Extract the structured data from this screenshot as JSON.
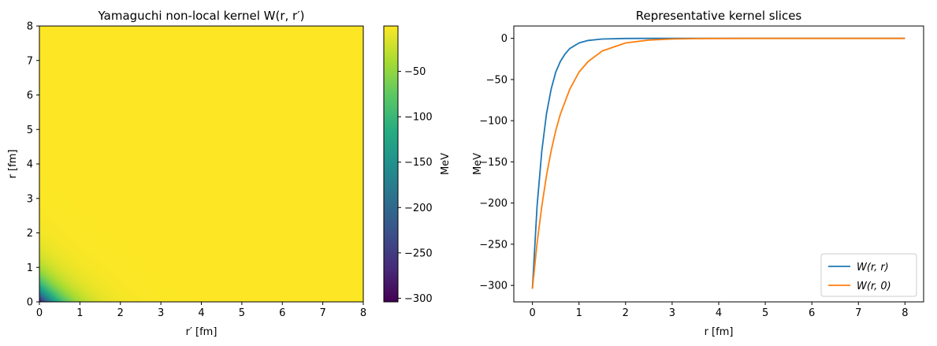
{
  "chart_data": [
    {
      "type": "heatmap",
      "title": "Yamaguchi non-local kernel W(r, r′)",
      "xlabel": "r′ [fm]",
      "ylabel": "r [fm]",
      "xlim": [
        0,
        8
      ],
      "ylim": [
        0,
        8
      ],
      "xticks": [
        "0",
        "1",
        "2",
        "3",
        "4",
        "5",
        "6",
        "7",
        "8"
      ],
      "yticks": [
        "0",
        "1",
        "2",
        "3",
        "4",
        "5",
        "6",
        "7",
        "8"
      ],
      "colormap": "viridis",
      "value_range": [
        -304,
        0
      ],
      "grid": false,
      "colorbar": {
        "label": "MeV",
        "ticks": [
          "−50",
          "−100",
          "−150",
          "−200",
          "−250",
          "−300"
        ],
        "tick_values": [
          -50,
          -100,
          -150,
          -200,
          -250,
          -300
        ]
      }
    },
    {
      "type": "line",
      "title": "Representative kernel slices",
      "xlabel": "r [fm]",
      "ylabel": "MeV",
      "xlim": [
        -0.4,
        8.4
      ],
      "ylim": [
        -320,
        15
      ],
      "xticks": [
        "0",
        "1",
        "2",
        "3",
        "4",
        "5",
        "6",
        "7",
        "8"
      ],
      "yticks": [
        "0",
        "−50",
        "−100",
        "−150",
        "−200",
        "−250",
        "−300"
      ],
      "ytick_values": [
        0,
        -50,
        -100,
        -150,
        -200,
        -250,
        -300
      ],
      "grid": false,
      "legend_position": "bottom-right",
      "series": [
        {
          "name": "W(r, r)",
          "color": "#1f77b4",
          "x": [
            0,
            0.1,
            0.2,
            0.3,
            0.4,
            0.5,
            0.6,
            0.7,
            0.8,
            1.0,
            1.2,
            1.5,
            2.0,
            2.5,
            3.0,
            4.0,
            5.0,
            6.0,
            7.0,
            8.0
          ],
          "y": [
            -304,
            -204,
            -137,
            -92,
            -62,
            -41,
            -28,
            -19,
            -12.5,
            -5.6,
            -2.5,
            -0.8,
            -0.1,
            0,
            0,
            0,
            0,
            0,
            0,
            0
          ]
        },
        {
          "name": "W(r, 0)",
          "color": "#ff7f0e",
          "x": [
            0,
            0.1,
            0.2,
            0.3,
            0.4,
            0.5,
            0.6,
            0.8,
            1.0,
            1.2,
            1.5,
            2.0,
            2.5,
            3.0,
            3.5,
            4.0,
            4.5,
            5.0,
            6.0,
            7.0,
            8.0
          ],
          "y": [
            -304,
            -249,
            -204,
            -167,
            -137,
            -112,
            -92,
            -62,
            -41,
            -28,
            -15.2,
            -5.6,
            -2.0,
            -0.75,
            -0.27,
            -0.1,
            -0.04,
            0,
            0,
            0,
            0
          ]
        }
      ]
    }
  ]
}
